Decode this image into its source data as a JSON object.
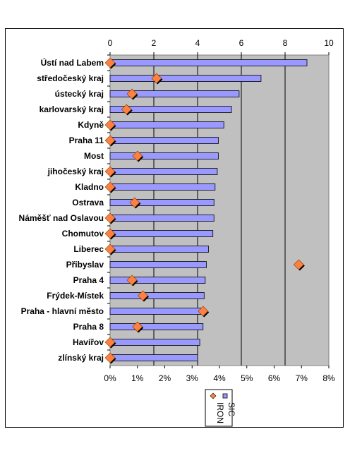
{
  "chart_data": {
    "type": "bar",
    "orientation": "horizontal",
    "categories": [
      "Ústí nad Labem",
      "středočeský kraj",
      "ústecký kraj",
      "karlovarský kraj",
      "Kdyně",
      "Praha 11",
      "Most",
      "jihočeský kraj",
      "Kladno",
      "Ostrava",
      "Náměšť nad Oslavou",
      "Chomutov",
      "Liberec",
      "Přibyslav",
      "Praha 4",
      "Frýdek-Místek",
      "Praha - hlavní město",
      "Praha 8",
      "Havířov",
      "zlínský kraj"
    ],
    "series": [
      {
        "name": "SIC",
        "axis": "top",
        "color": "#9999FF",
        "values": [
          9.0,
          6.9,
          5.9,
          5.55,
          5.2,
          4.95,
          4.95,
          4.9,
          4.8,
          4.75,
          4.75,
          4.7,
          4.5,
          4.4,
          4.35,
          4.3,
          4.3,
          4.25,
          4.1,
          4.0
        ]
      },
      {
        "name": "IRON",
        "axis": "bottom",
        "color": "#FF8040",
        "values": [
          0.0,
          1.7,
          0.8,
          0.6,
          0.0,
          0.0,
          1.0,
          0.0,
          0.0,
          0.9,
          0.0,
          0.0,
          0.0,
          6.9,
          0.8,
          1.2,
          3.4,
          1.0,
          0.0,
          0.0
        ]
      }
    ],
    "x_top": {
      "min": 0,
      "max": 10,
      "ticks": [
        "0",
        "2",
        "4",
        "6",
        "8",
        "10"
      ]
    },
    "x_bottom": {
      "min": 0,
      "max": 8,
      "ticks": [
        "0%",
        "1%",
        "2%",
        "3%",
        "4%",
        "5%",
        "6%",
        "7%",
        "8%"
      ]
    },
    "plot_background": "#C0C0C0",
    "grid": true,
    "legend_position": "bottom"
  }
}
